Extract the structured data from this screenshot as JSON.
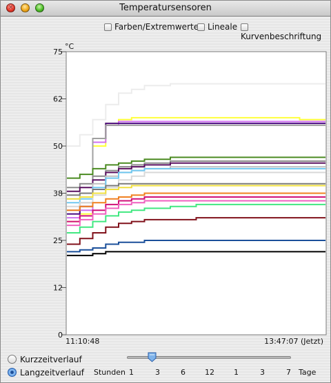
{
  "window": {
    "title": "Temperatursensoren"
  },
  "options": {
    "colors_label": "Farben/Extremwerte",
    "rulers_label": "Lineale",
    "curve_labels_label": "Kurvenbeschriftung"
  },
  "chart_data": {
    "type": "line",
    "unit": "°C",
    "y_ticks": [
      "75",
      "62",
      "50",
      "38",
      "25",
      "12",
      "0"
    ],
    "ylim": [
      0,
      75
    ],
    "x_start_label": "11:10:48",
    "x_end_label": "13:47:07 (Jetzt)",
    "x": [
      0,
      5,
      10,
      15,
      20,
      25,
      30,
      40,
      50,
      60,
      70,
      80,
      90,
      100
    ],
    "series": [
      {
        "color": "#ececec",
        "values": [
          50,
          53,
          57,
          61,
          64,
          65,
          66,
          66.5,
          66.5,
          66.5,
          66.5,
          66.5,
          66.5,
          66.5
        ]
      },
      {
        "color": "#ffff3a",
        "values": [
          30,
          32,
          50,
          56,
          57,
          57.5,
          57.5,
          57.5,
          57.5,
          57.5,
          57.5,
          57.5,
          57,
          57
        ]
      },
      {
        "color": "#d070f0",
        "values": [
          31,
          33,
          51,
          55.5,
          56.5,
          56.5,
          56.5,
          56.5,
          56.5,
          56.5,
          56.5,
          56.5,
          56.5,
          56.5
        ]
      },
      {
        "color": "#4a0a80",
        "values": [
          32,
          34,
          52,
          56,
          56,
          56,
          56,
          56,
          56,
          56,
          56,
          56,
          56,
          56
        ]
      },
      {
        "color": "#a0a0a0",
        "values": [
          33,
          35,
          52,
          55.5,
          55.5,
          55.5,
          55.5,
          55.5,
          55.5,
          55.5,
          55.5,
          55.5,
          55.5,
          55.5
        ]
      },
      {
        "color": "#4a8a20",
        "values": [
          41.5,
          42.5,
          44,
          45,
          45.5,
          46,
          46.5,
          47,
          47,
          47,
          47,
          47,
          47,
          47
        ]
      },
      {
        "color": "#8a8a8a",
        "values": [
          39,
          40,
          42,
          43.5,
          44.5,
          45,
          45.5,
          46,
          46,
          46,
          46,
          46,
          46,
          46
        ]
      },
      {
        "color": "#5a1060",
        "values": [
          38,
          39,
          41,
          43,
          44,
          44.5,
          45,
          45.5,
          45.5,
          45.5,
          45.5,
          45.5,
          45.5,
          45.5
        ]
      },
      {
        "color": "#c0c0c0",
        "values": [
          36,
          37.5,
          40,
          42,
          43,
          43.5,
          44,
          44.5,
          44.5,
          44.5,
          44.5,
          44.5,
          44.5,
          44.5
        ]
      },
      {
        "color": "#70c8f0",
        "values": [
          35,
          36,
          39,
          41.5,
          43,
          43.5,
          44,
          44,
          44,
          44,
          44,
          44,
          44,
          44
        ]
      },
      {
        "color": "#d8d8d8",
        "values": [
          34,
          35,
          37,
          39,
          41,
          42,
          43,
          43,
          43,
          43,
          43,
          43,
          43,
          43
        ]
      },
      {
        "color": "#7a7a7a",
        "values": [
          37,
          37.5,
          38.5,
          39.5,
          40,
          40,
          40,
          40,
          40,
          40,
          40,
          40,
          40,
          40
        ]
      },
      {
        "color": "#f0e040",
        "values": [
          36,
          36.5,
          37.5,
          38.5,
          39,
          39.5,
          39.5,
          39.5,
          39.5,
          39.5,
          39.5,
          39.5,
          39.5,
          39.5
        ]
      },
      {
        "color": "#f08020",
        "values": [
          33,
          34,
          35,
          36,
          36.5,
          37,
          37.5,
          37.5,
          37.5,
          37.5,
          37.5,
          37.5,
          37.5,
          37.5
        ]
      },
      {
        "color": "#d01078",
        "values": [
          30,
          31.5,
          33,
          34.5,
          35.5,
          36,
          36.5,
          36.5,
          36.5,
          36.5,
          36.5,
          36.5,
          36.5,
          36.5
        ]
      },
      {
        "color": "#f060c0",
        "values": [
          29,
          30.5,
          32,
          33.5,
          34.5,
          35,
          35.5,
          35.5,
          35.5,
          35.5,
          35.5,
          35.5,
          35.5,
          35.5
        ]
      },
      {
        "color": "#40e880",
        "values": [
          27,
          28.5,
          30,
          31.5,
          32.5,
          33,
          33.5,
          34,
          34.5,
          34.5,
          34.5,
          34.5,
          34.5,
          34.5
        ]
      },
      {
        "color": "#80101a",
        "values": [
          24,
          25.5,
          27,
          28.5,
          29.5,
          30,
          30.5,
          30.5,
          31,
          31,
          31,
          31,
          31,
          31
        ]
      },
      {
        "color": "#1a4f9a",
        "values": [
          22,
          22.5,
          23,
          24,
          24.5,
          24.5,
          25,
          25,
          25,
          25,
          25,
          25,
          25,
          25
        ]
      },
      {
        "color": "#000000",
        "values": [
          21,
          21,
          21.5,
          22,
          22,
          22,
          22,
          22,
          22,
          22,
          22,
          22,
          22,
          22
        ]
      }
    ]
  },
  "mode": {
    "short_label": "Kurzzeitverlauf",
    "long_label": "Langzeitverlauf",
    "selected": "Langzeitverlauf"
  },
  "range": {
    "hours_label": "Stunden",
    "days_label": "Tage",
    "ticks": [
      "1",
      "3",
      "6",
      "12",
      "1",
      "3",
      "7"
    ],
    "selected_tick": "3"
  }
}
